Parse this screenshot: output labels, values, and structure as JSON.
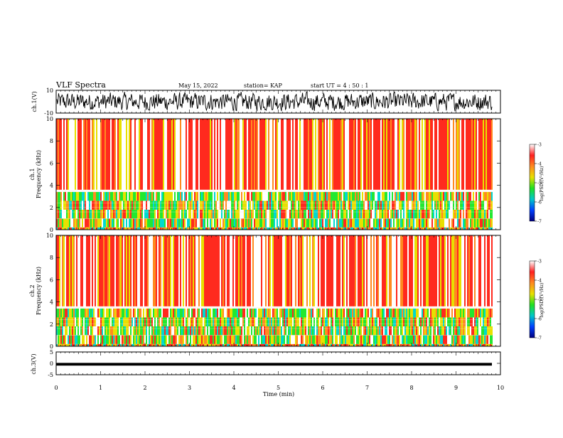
{
  "header": {
    "title": "VLF Spectra",
    "date": "May 15, 2022",
    "station": "station= KAP",
    "start_ut": "start  UT  =   4 : 50 : 1"
  },
  "chart_data": [
    {
      "type": "line",
      "title": "",
      "ylabel": "ch.1(V)",
      "ylim": [
        -10,
        10
      ],
      "y_ticks": [
        "10",
        "-10"
      ],
      "xlim": [
        0,
        10
      ],
      "description_values": "noisy waveform, amplitude mostly between about -7 and 7 V"
    },
    {
      "type": "heatmap",
      "ylabel": "ch.1\nFrequency  (kHz)",
      "ylim": [
        0,
        10
      ],
      "y_ticks": [
        "0",
        "2",
        "4",
        "6",
        "8",
        "10"
      ],
      "xlim": [
        0,
        9.8
      ],
      "colorbar": {
        "label": "log(PSD)(V²/Hz)",
        "range": [
          -7,
          -3
        ],
        "ticks": [
          "-3",
          "-4",
          "-5",
          "-6",
          "-7"
        ]
      }
    },
    {
      "type": "heatmap",
      "ylabel": "ch.2\nFrequency  (kHz)",
      "ylim": [
        0,
        10
      ],
      "y_ticks": [
        "0",
        "2",
        "4",
        "6",
        "8",
        "10"
      ],
      "xlim": [
        0,
        9.8
      ],
      "colorbar": {
        "label": "log(PSD)(V²/Hz)",
        "range": [
          -7,
          -3
        ],
        "ticks": [
          "-3",
          "-4",
          "-5",
          "-6",
          "-7"
        ]
      }
    },
    {
      "type": "line",
      "ylabel": "ch.3(V)",
      "ylim": [
        -5,
        5
      ],
      "y_ticks": [
        "5",
        "0",
        "-5"
      ],
      "xlim": [
        0,
        10
      ],
      "description_values": "nearly flat signal around -0.2 V"
    }
  ],
  "x_axis": {
    "label": "Time  (min)",
    "ticks": [
      "0",
      "1",
      "2",
      "3",
      "4",
      "5",
      "6",
      "7",
      "8",
      "9",
      "10"
    ]
  },
  "labels": {
    "ch1_v": "ch.1(V)",
    "ch1_f1": "ch.1",
    "ch1_f2": "Frequency  (kHz)",
    "ch2_f1": "ch.2",
    "ch2_f2": "Frequency  (kHz)",
    "ch3_v": "ch.3(V)",
    "cb_label": "log(PSD)(V²/Hz)"
  },
  "colors": {
    "hot": "#ff2a1e",
    "warm": "#ff8a20",
    "yellow": "#e8e000",
    "green": "#22e830",
    "cyan": "#00d8d0",
    "blue": "#1060ff",
    "white": "#ffffff"
  }
}
